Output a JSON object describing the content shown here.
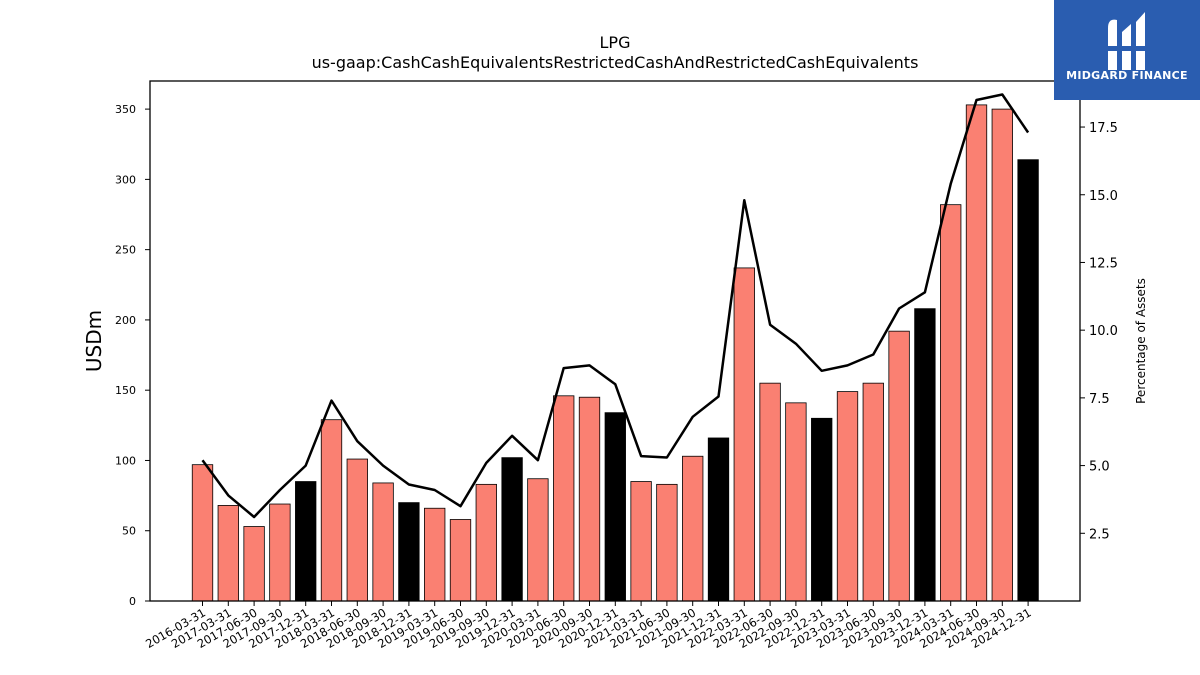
{
  "brand": {
    "name": "MIDGARD FINANCE",
    "bg_color": "#2a5db0"
  },
  "chart_data": {
    "type": "bar",
    "title": "LPG",
    "subtitle": "us-gaap:CashCashEquivalentsRestrictedCashAndRestrictedCashEquivalents",
    "ylabel": "USDm",
    "y2label": "Percentage of Assets",
    "ylim": [
      0,
      370
    ],
    "y2lim": [
      0,
      19.2
    ],
    "yticks": [
      0,
      50,
      100,
      150,
      200,
      250,
      300,
      350
    ],
    "y2ticks": [
      2.5,
      5.0,
      7.5,
      10.0,
      12.5,
      15.0,
      17.5
    ],
    "colors": {
      "quarter": "#fa8072",
      "year_end": "#000000",
      "line": "#000000"
    },
    "categories": [
      "2016-03-31",
      "2017-03-31",
      "2017-06-30",
      "2017-09-30",
      "2017-12-31",
      "2018-03-31",
      "2018-06-30",
      "2018-09-30",
      "2018-12-31",
      "2019-03-31",
      "2019-06-30",
      "2019-09-30",
      "2019-12-31",
      "2020-03-31",
      "2020-06-30",
      "2020-09-30",
      "2020-12-31",
      "2021-03-31",
      "2021-06-30",
      "2021-09-30",
      "2021-12-31",
      "2022-03-31",
      "2022-06-30",
      "2022-09-30",
      "2022-12-31",
      "2023-03-31",
      "2023-06-30",
      "2023-09-30",
      "2023-12-31",
      "2024-03-31",
      "2024-06-30",
      "2024-09-30",
      "2024-12-31"
    ],
    "series": [
      {
        "type": "bar",
        "values": [
          97,
          68,
          53,
          69,
          85,
          129,
          101,
          84,
          70,
          66,
          58,
          83,
          102,
          87,
          146,
          145,
          134,
          85,
          83,
          103,
          116,
          237,
          155,
          141,
          130,
          149,
          155,
          192,
          208,
          282,
          353,
          350,
          314
        ]
      },
      {
        "type": "line",
        "axis": "right",
        "values": [
          5.2,
          3.9,
          3.1,
          4.1,
          5.0,
          7.4,
          5.9,
          5.0,
          4.3,
          4.1,
          3.5,
          5.1,
          6.1,
          5.2,
          8.6,
          8.7,
          8.0,
          5.35,
          5.3,
          6.8,
          7.55,
          14.8,
          10.2,
          9.5,
          8.5,
          8.7,
          9.1,
          10.8,
          11.4,
          15.4,
          18.5,
          18.7,
          17.3
        ]
      }
    ],
    "year_end_flags": [
      false,
      false,
      false,
      false,
      true,
      false,
      false,
      false,
      true,
      false,
      false,
      false,
      true,
      false,
      false,
      false,
      true,
      false,
      false,
      false,
      true,
      false,
      false,
      false,
      true,
      false,
      false,
      false,
      true,
      false,
      false,
      false,
      true
    ]
  }
}
